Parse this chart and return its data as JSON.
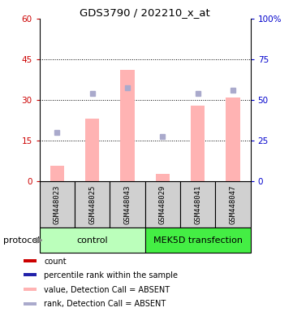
{
  "title": "GDS3790 / 202210_x_at",
  "samples": [
    "GSM448023",
    "GSM448025",
    "GSM448043",
    "GSM448029",
    "GSM448041",
    "GSM448047"
  ],
  "bar_values": [
    5.5,
    23.0,
    41.0,
    2.5,
    28.0,
    31.0
  ],
  "dot_values": [
    30.0,
    54.0,
    57.5,
    27.5,
    54.0,
    56.0
  ],
  "bar_color_absent": "#FFB3B3",
  "dot_color_absent": "#AAAACC",
  "bar_color_present": "#CC0000",
  "dot_color_present": "#2222AA",
  "ylim_left": [
    0,
    60
  ],
  "ylim_right": [
    0,
    100
  ],
  "yticks_left": [
    0,
    15,
    30,
    45,
    60
  ],
  "ytick_labels_left": [
    "0",
    "15",
    "30",
    "45",
    "60"
  ],
  "yticks_right": [
    0,
    25,
    50,
    75,
    100
  ],
  "ytick_labels_right": [
    "0",
    "25",
    "50",
    "75",
    "100%"
  ],
  "group_colors": [
    "#BBFFBB",
    "#44EE44"
  ],
  "xlabel_protocol": "protocol",
  "legend_items": [
    {
      "label": "count",
      "color": "#CC0000"
    },
    {
      "label": "percentile rank within the sample",
      "color": "#2222AA"
    },
    {
      "label": "value, Detection Call = ABSENT",
      "color": "#FFB3B3"
    },
    {
      "label": "rank, Detection Call = ABSENT",
      "color": "#AAAACC"
    }
  ],
  "tick_color_left": "#CC0000",
  "tick_color_right": "#0000CC"
}
